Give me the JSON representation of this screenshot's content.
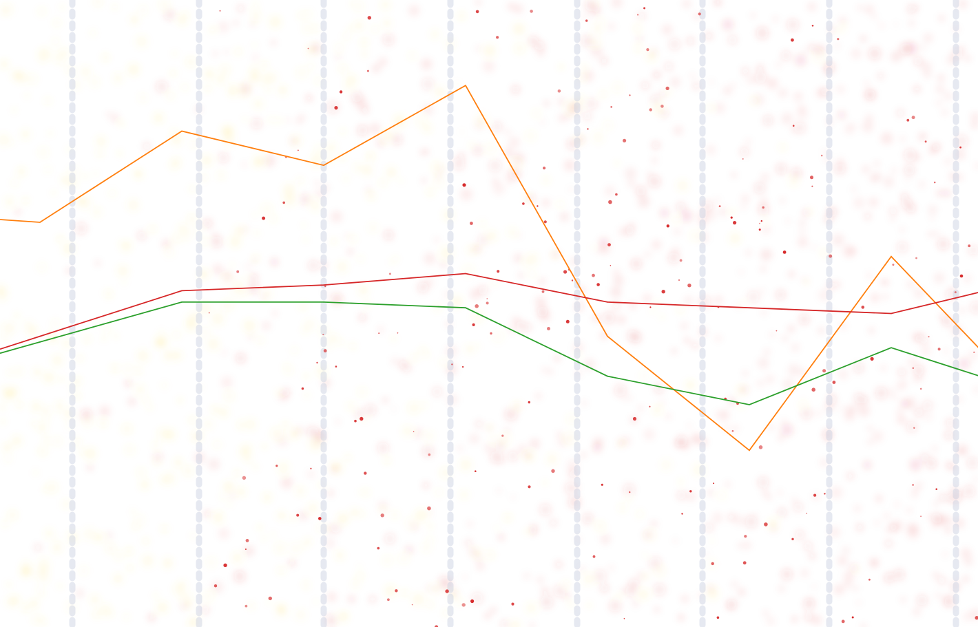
{
  "chart_data": {
    "type": "line",
    "x": [
      0,
      1,
      2,
      3,
      4,
      5,
      6,
      7
    ],
    "series": [
      {
        "color": "#ff7f0e",
        "values": [
          71,
          87,
          81,
          95,
          51,
          31,
          65,
          39
        ]
      },
      {
        "color": "#d62728",
        "values": [
          51,
          59,
          60,
          62,
          57,
          56,
          55,
          61
        ]
      },
      {
        "color": "#2ca02c",
        "values": [
          50,
          57,
          57,
          56,
          44,
          39,
          49,
          41
        ]
      }
    ],
    "ylim": [
      0,
      110
    ],
    "grid": true,
    "grid_style": "dashed vertical",
    "legend": "none",
    "background": {
      "type": "dot-scatter",
      "colors": [
        "#d62728",
        "#ffdb4d"
      ]
    }
  }
}
